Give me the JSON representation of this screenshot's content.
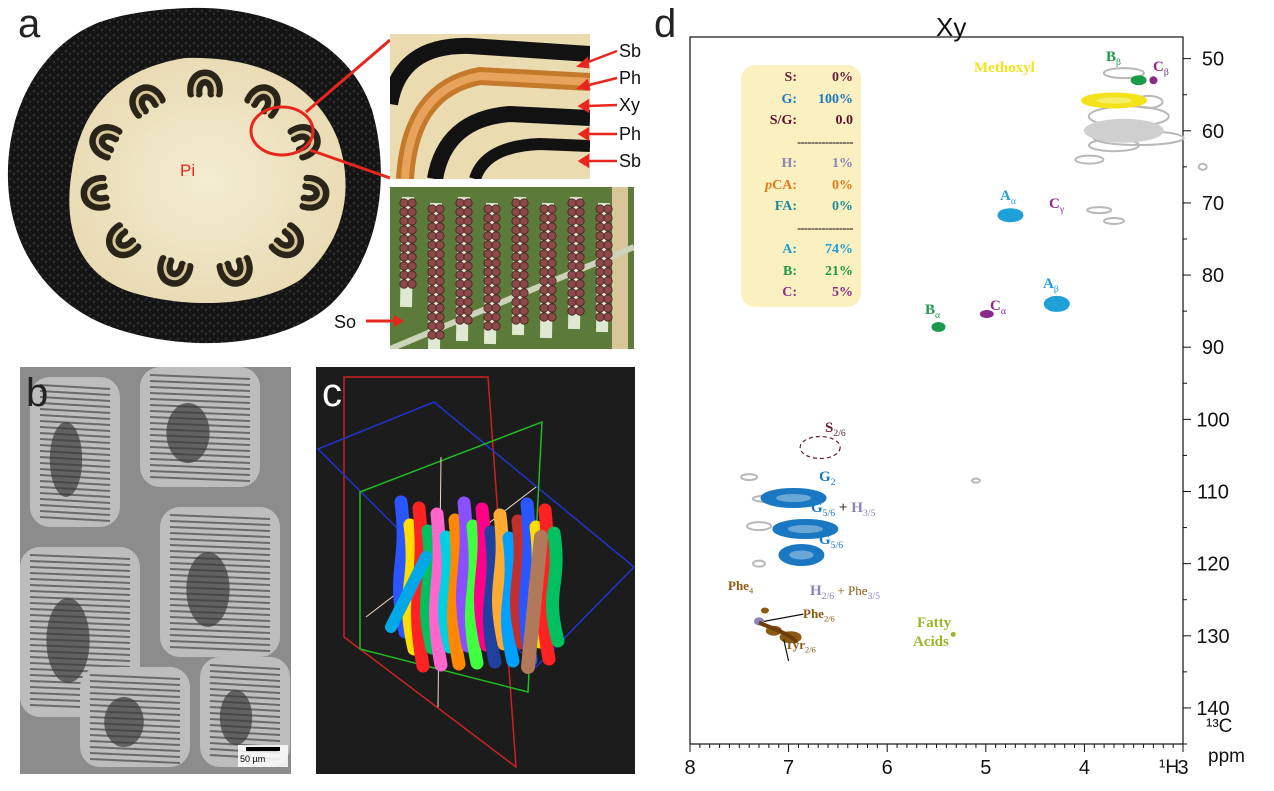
{
  "panels": {
    "a": {
      "letter": "a",
      "center_label": "Pi",
      "inset_labels": [
        "Sb",
        "Ph",
        "Xy",
        "Ph",
        "Sb"
      ],
      "so_label": "So"
    },
    "b": {
      "letter": "b",
      "scale_bar": "50 µm"
    },
    "c": {
      "letter": "c"
    },
    "d": {
      "letter": "d",
      "title": "Xy",
      "x_axis_label": "¹H",
      "y_axis_unit_top": "¹³C",
      "y_axis_unit_bottom": "ppm"
    }
  },
  "legend_box": {
    "rows": [
      {
        "key": "S",
        "value": "0%",
        "color": "#6b1b3a"
      },
      {
        "key": "G",
        "value": "100%",
        "color": "#1a78c2"
      },
      {
        "key": "S/G",
        "value": "0.0",
        "color": "#5a1430"
      },
      {
        "key": "H",
        "value": "1%",
        "color": "#8b84b8"
      },
      {
        "key": "pCA",
        "value": "0%",
        "color": "#e07a1f"
      },
      {
        "key": "FA",
        "value": "0%",
        "color": "#1a8c9e"
      },
      {
        "key": "A",
        "value": "74%",
        "color": "#1fa0d8"
      },
      {
        "key": "B",
        "value": "21%",
        "color": "#1a9a4a"
      },
      {
        "key": "C",
        "value": "5%",
        "color": "#8a2a8a"
      }
    ],
    "separator": "----------------"
  },
  "annotations": {
    "methoxyl": "Methoxyl",
    "b_beta": "Bβ",
    "c_beta": "Cβ",
    "a_alpha": "Aα",
    "c_gamma": "Cγ",
    "a_beta": "Aβ",
    "b_alpha": "Bα",
    "c_alpha": "Cα",
    "s26": "S2/6",
    "g2": "G2",
    "g56_h35": "G5/6 + H3/5",
    "g56": "G5/6",
    "phe4": "Phe4",
    "h26_phe35": "H2/6 + Phe3/5",
    "phe26": "Phe2/6",
    "tyr26": "Tyr2/6",
    "fatty": "Fatty",
    "acids": "Acids"
  },
  "chart_data": {
    "type": "heatmap",
    "title": "Xy",
    "xlabel": "¹H",
    "ylabel": "¹³C ppm",
    "xlim": [
      8,
      3
    ],
    "ylim": [
      145,
      50
    ],
    "x_ticks": [
      8,
      7,
      6,
      5,
      4,
      3
    ],
    "y_ticks": [
      50,
      60,
      70,
      80,
      90,
      100,
      110,
      120,
      130,
      140
    ],
    "peaks": [
      {
        "label": "Methoxyl",
        "x": 3.7,
        "y": 55.8,
        "color": "#f2e31b"
      },
      {
        "label": "Bβ",
        "x": 3.45,
        "y": 53.0,
        "color": "#1a9a4a"
      },
      {
        "label": "Cβ",
        "x": 3.3,
        "y": 53.0,
        "color": "#8a2a8a"
      },
      {
        "label": "Aα",
        "x": 4.75,
        "y": 71.7,
        "color": "#1fa0d8"
      },
      {
        "label": "Aβ",
        "x": 4.28,
        "y": 84.0,
        "color": "#1fa0d8"
      },
      {
        "label": "Bα",
        "x": 5.48,
        "y": 87.2,
        "color": "#1a9a4a"
      },
      {
        "label": "Cα",
        "x": 4.99,
        "y": 85.4,
        "color": "#8a2a8a"
      },
      {
        "label": "S2/6",
        "x": 6.68,
        "y": 103.9,
        "color": "#6b1b3a"
      },
      {
        "label": "G2",
        "x": 6.95,
        "y": 110.9,
        "color": "#1a78c2"
      },
      {
        "label": "G5/6 + H3/5",
        "x": 6.83,
        "y": 115.2,
        "color": "#1a78c2"
      },
      {
        "label": "G5/6",
        "x": 6.87,
        "y": 118.8,
        "color": "#1a78c2"
      },
      {
        "label": "Phe4",
        "x": 7.24,
        "y": 126.5,
        "color": "#8b5a12"
      },
      {
        "label": "H2/6 + Phe3/5",
        "x": 7.3,
        "y": 128.0,
        "color": "#8b84b8"
      },
      {
        "label": "Phe2/6",
        "x": 7.15,
        "y": 129.3,
        "color": "#8b5a12"
      },
      {
        "label": "Tyr2/6",
        "x": 6.98,
        "y": 130.2,
        "color": "#8b5a12"
      },
      {
        "label": "Fatty Acids",
        "x": 5.33,
        "y": 129.8,
        "color": "#9ab52a"
      }
    ]
  }
}
